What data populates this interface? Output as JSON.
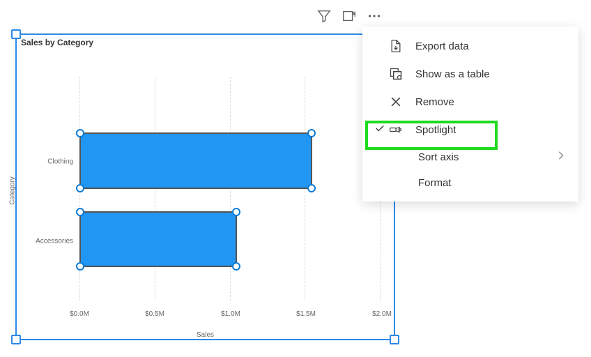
{
  "chart": {
    "title": "Sales by Category",
    "type": "bar-horizontal",
    "y_axis_label": "Category",
    "x_axis_label": "Sales",
    "categories": [
      "Clothing",
      "Accessories"
    ],
    "values": [
      1.55,
      1.05
    ],
    "bar_color": "#2196f3",
    "bar_border_color": "#555555",
    "selection_color": "#2c89e8",
    "handle_border_color": "#0b7bd6",
    "handle_fill_color": "#ffffff",
    "grid_color": "#dcdcdc",
    "x_ticks": [
      "$0.0M",
      "$0.5M",
      "$1.0M",
      "$1.5M",
      "$2.0M"
    ],
    "x_tick_values": [
      0,
      0.5,
      1.0,
      1.5,
      2.0
    ],
    "xlim": [
      0,
      2.0
    ],
    "title_fontsize": 12,
    "axis_label_fontsize": 10,
    "tick_fontsize": 10,
    "bar_positions": [
      {
        "top_pct": 25,
        "height_pct": 25
      },
      {
        "top_pct": 60,
        "height_pct": 25
      }
    ]
  },
  "menu": {
    "items": [
      {
        "icon": "export",
        "label": "Export data"
      },
      {
        "icon": "table",
        "label": "Show as a table"
      },
      {
        "icon": "remove",
        "label": "Remove"
      },
      {
        "icon": "spotlight",
        "label": "Spotlight",
        "checked": true,
        "highlighted": true
      },
      {
        "icon": null,
        "label": "Sort axis",
        "submenu": true
      },
      {
        "icon": null,
        "label": "Format"
      }
    ]
  },
  "highlight_color": "#1edb1e"
}
